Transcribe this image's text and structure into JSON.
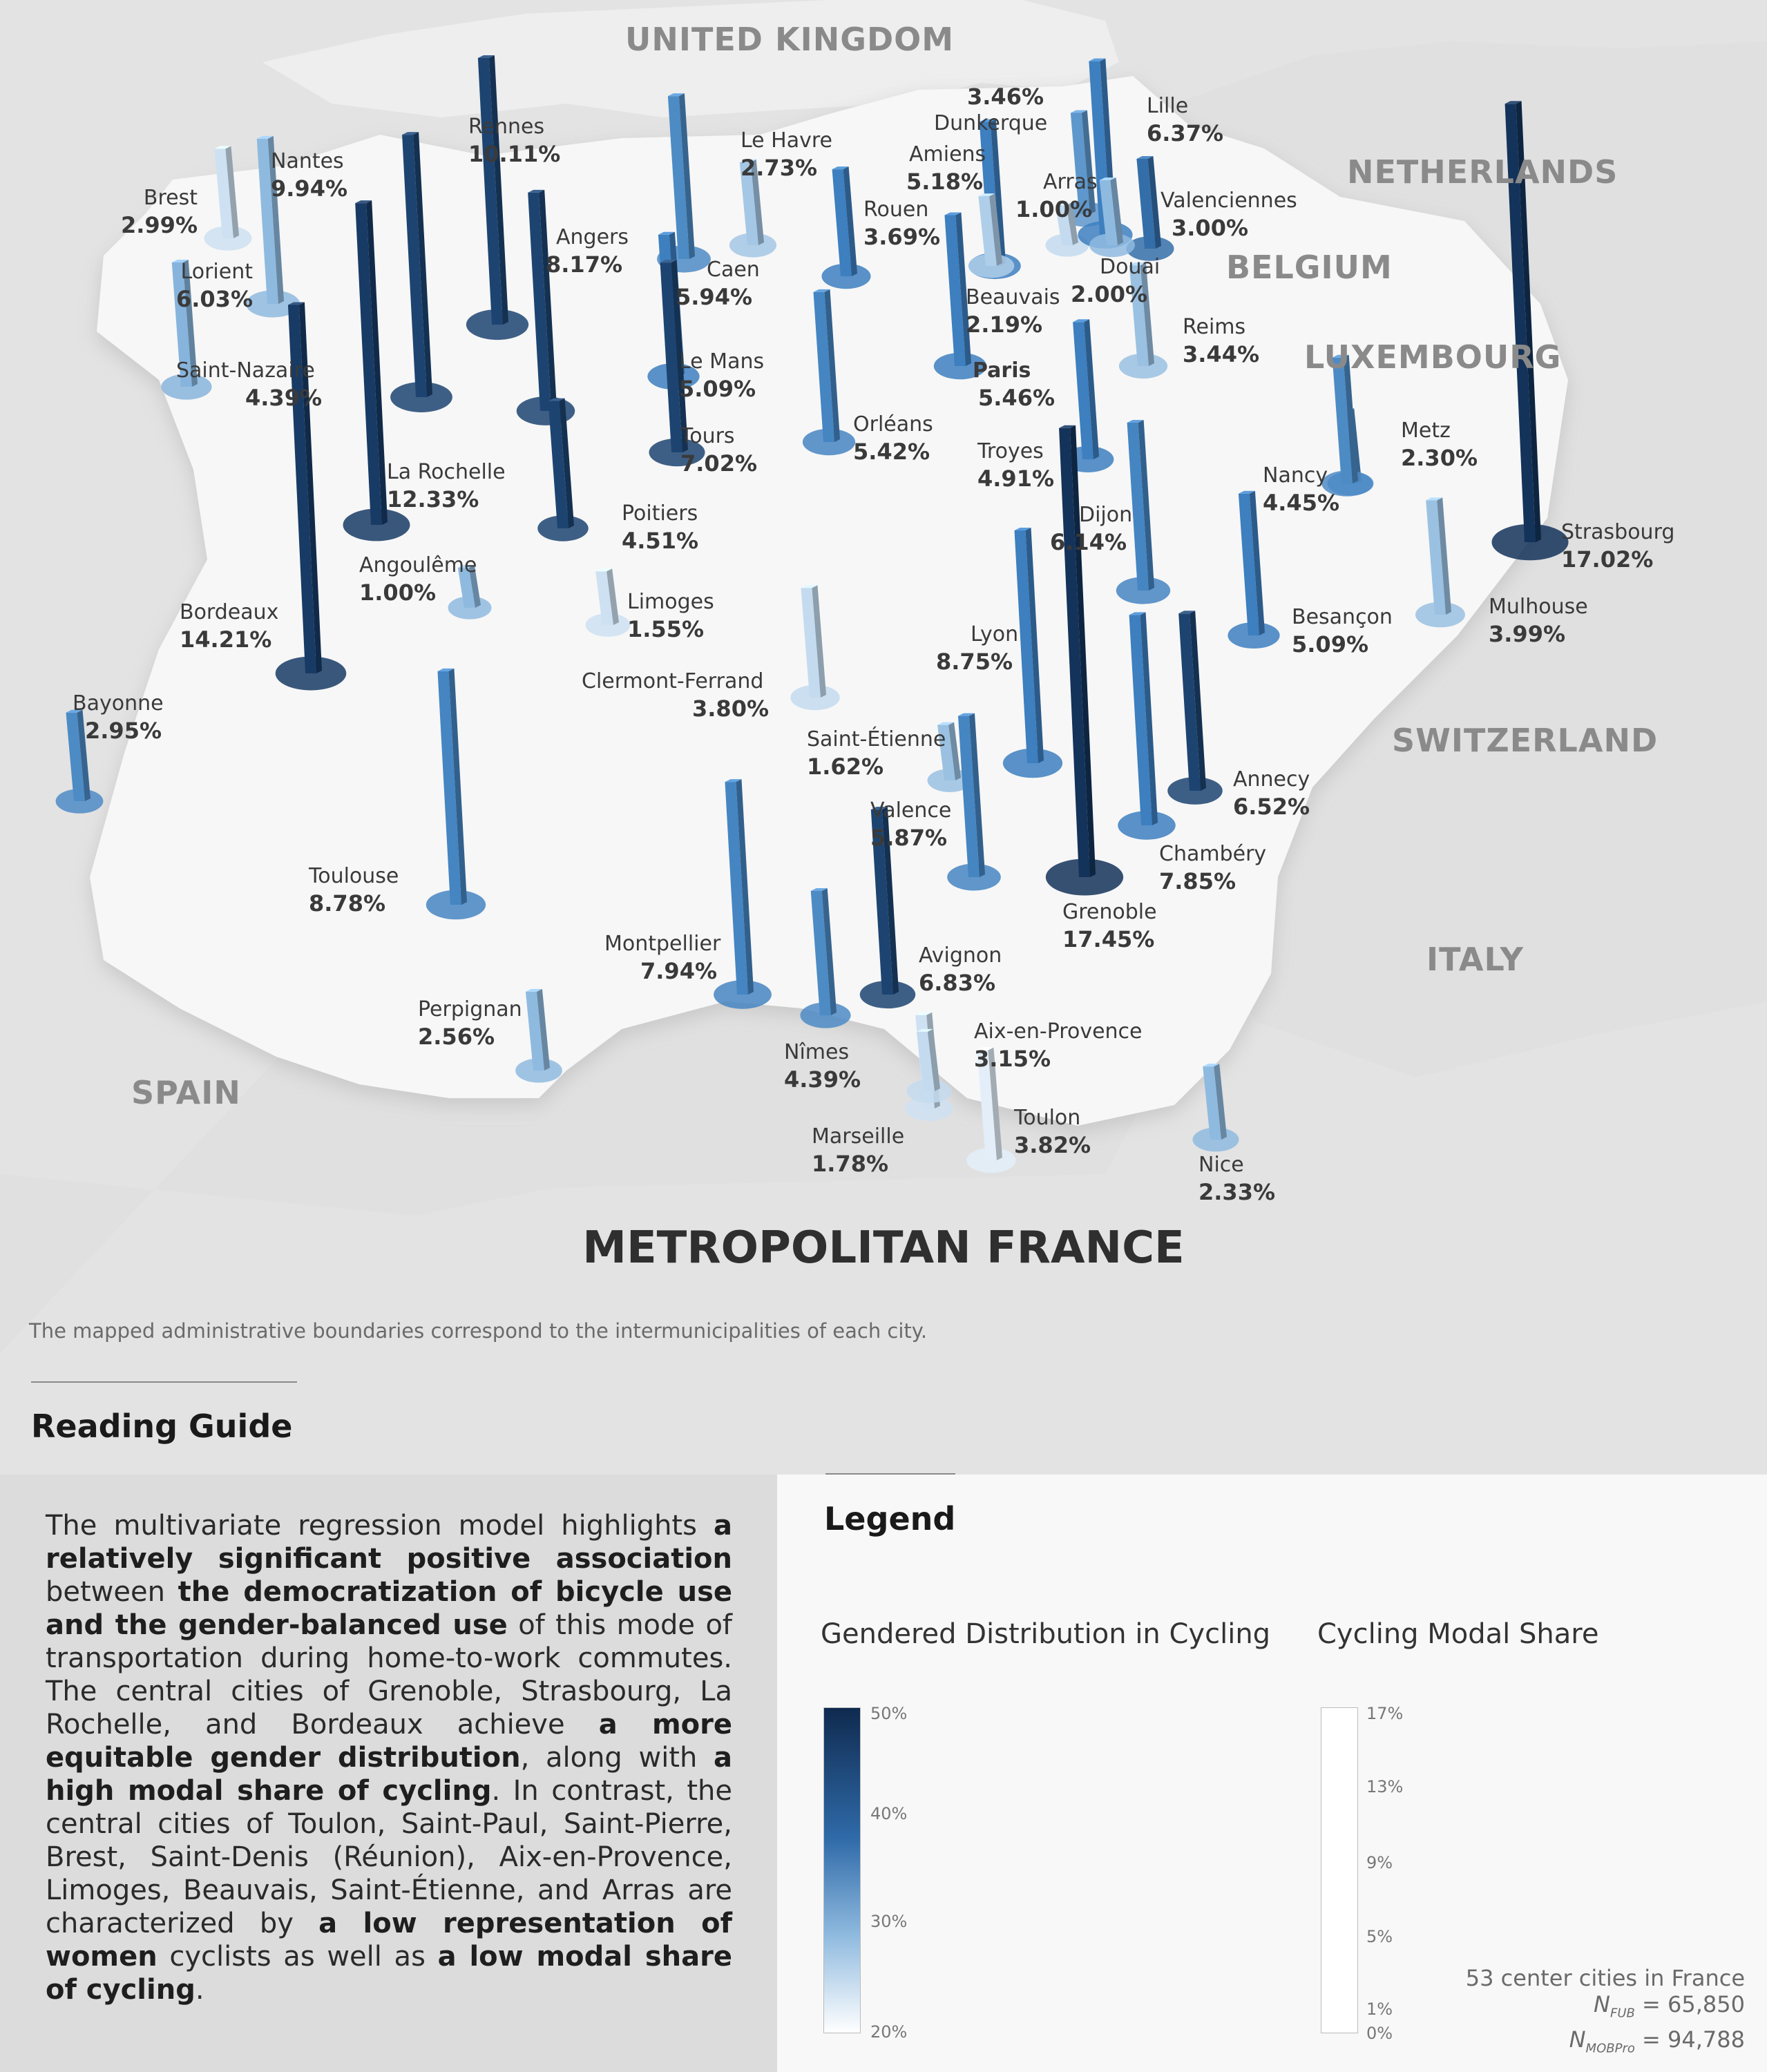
{
  "title": "METROPOLITAN FRANCE",
  "note": "The mapped administrative boundaries correspond to the intermunicipalities of each city.",
  "countries": [
    "UNITED KINGDOM",
    "NETHERLANDS",
    "BELGIUM",
    "LUXEMBOURG",
    "SWITZERLAND",
    "ITALY",
    "SPAIN"
  ],
  "cities": [
    {
      "name": "Brest",
      "value": "2.99%",
      "share": 2.99,
      "gender": 24
    },
    {
      "name": "Nantes",
      "value": "9.94%",
      "share": 9.94,
      "gender": 47
    },
    {
      "name": "Rennes",
      "value": "10.11%",
      "share": 10.11,
      "gender": 47
    },
    {
      "name": "Lorient",
      "value": "6.03%",
      "share": 6.03,
      "gender": 30
    },
    {
      "name": "Saint-Nazaire",
      "value": "4.39%",
      "share": 4.39,
      "gender": 31
    },
    {
      "name": "Angers",
      "value": "8.17%",
      "share": 8.17,
      "gender": 47
    },
    {
      "name": "Caen",
      "value": "5.94%",
      "share": 5.94,
      "gender": 38
    },
    {
      "name": "Le Havre",
      "value": "2.73%",
      "share": 2.73,
      "gender": 28
    },
    {
      "name": "Rouen",
      "value": "3.69%",
      "share": 3.69,
      "gender": 40
    },
    {
      "name": "Amiens",
      "value": "5.18%",
      "share": 5.18,
      "gender": 40
    },
    {
      "name": "Dunkerque",
      "value": "3.46%",
      "share": 3.46,
      "gender": 36
    },
    {
      "name": "Arras",
      "value": "1.00%",
      "share": 1.0,
      "gender": 25
    },
    {
      "name": "Lille",
      "value": "6.37%",
      "share": 6.37,
      "gender": 40
    },
    {
      "name": "Valenciennes",
      "value": "3.00%",
      "share": 3.0,
      "gender": 42
    },
    {
      "name": "Douai",
      "value": "2.00%",
      "share": 2.0,
      "gender": 30
    },
    {
      "name": "Beauvais",
      "value": "2.19%",
      "share": 2.19,
      "gender": 27
    },
    {
      "name": "Paris",
      "value": "5.46%",
      "share": 5.46,
      "gender": 40
    },
    {
      "name": "Reims",
      "value": "3.44%",
      "share": 3.44,
      "gender": 29
    },
    {
      "name": "Le Mans",
      "value": "5.09%",
      "share": 5.09,
      "gender": 40
    },
    {
      "name": "Tours",
      "value": "7.02%",
      "share": 7.02,
      "gender": 47
    },
    {
      "name": "Orléans",
      "value": "5.42%",
      "share": 5.42,
      "gender": 39
    },
    {
      "name": "Troyes",
      "value": "4.91%",
      "share": 4.91,
      "gender": 40
    },
    {
      "name": "Metz",
      "value": "2.30%",
      "share": 2.3,
      "gender": 38
    },
    {
      "name": "Nancy",
      "value": "4.45%",
      "share": 4.45,
      "gender": 38
    },
    {
      "name": "La Rochelle",
      "value": "12.33%",
      "share": 12.33,
      "gender": 48
    },
    {
      "name": "Poitiers",
      "value": "4.51%",
      "share": 4.51,
      "gender": 47
    },
    {
      "name": "Dijon",
      "value": "6.14%",
      "share": 6.14,
      "gender": 39
    },
    {
      "name": "Strasbourg",
      "value": "17.02%",
      "share": 17.02,
      "gender": 49
    },
    {
      "name": "Angoulême",
      "value": "1.00%",
      "share": 1.0,
      "gender": 30
    },
    {
      "name": "Limoges",
      "value": "1.55%",
      "share": 1.55,
      "gender": 24
    },
    {
      "name": "Bordeaux",
      "value": "14.21%",
      "share": 14.21,
      "gender": 48
    },
    {
      "name": "Mulhouse",
      "value": "3.99%",
      "share": 3.99,
      "gender": 29
    },
    {
      "name": "Besançon",
      "value": "5.09%",
      "share": 5.09,
      "gender": 40
    },
    {
      "name": "Lyon",
      "value": "8.75%",
      "share": 8.75,
      "gender": 40
    },
    {
      "name": "Clermont-Ferrand",
      "value": "3.80%",
      "share": 3.8,
      "gender": 25
    },
    {
      "name": "Bayonne",
      "value": "2.95%",
      "share": 2.95,
      "gender": 38
    },
    {
      "name": "Saint-Étienne",
      "value": "1.62%",
      "share": 1.62,
      "gender": 29
    },
    {
      "name": "Annecy",
      "value": "6.52%",
      "share": 6.52,
      "gender": 47
    },
    {
      "name": "Valence",
      "value": "5.87%",
      "share": 5.87,
      "gender": 39
    },
    {
      "name": "Chambéry",
      "value": "7.85%",
      "share": 7.85,
      "gender": 40
    },
    {
      "name": "Toulouse",
      "value": "8.78%",
      "share": 8.78,
      "gender": 39
    },
    {
      "name": "Grenoble",
      "value": "17.45%",
      "share": 17.45,
      "gender": 49
    },
    {
      "name": "Montpellier",
      "value": "7.94%",
      "share": 7.94,
      "gender": 39
    },
    {
      "name": "Avignon",
      "value": "6.83%",
      "share": 6.83,
      "gender": 47
    },
    {
      "name": "Perpignan",
      "value": "2.56%",
      "share": 2.56,
      "gender": 30
    },
    {
      "name": "Aix-en-Provence",
      "value": "3.15%",
      "share": 3.15,
      "gender": 24
    },
    {
      "name": "Nîmes",
      "value": "4.39%",
      "share": 4.39,
      "gender": 38
    },
    {
      "name": "Toulon",
      "value": "3.82%",
      "share": 3.82,
      "gender": 22
    },
    {
      "name": "Marseille",
      "value": "1.78%",
      "share": 1.78,
      "gender": 25
    },
    {
      "name": "Nice",
      "value": "2.33%",
      "share": 2.33,
      "gender": 30
    }
  ],
  "guide": {
    "title": "Reading Guide",
    "parts": [
      {
        "t": "The multivariate regression model highlights ",
        "b": false
      },
      {
        "t": "a relatively significant positive association",
        "b": true
      },
      {
        "t": " between ",
        "b": false
      },
      {
        "t": "the democratization of bicycle use and the gender-balanced use",
        "b": true
      },
      {
        "t": " of this mode of transportation during home-to-work commutes. The central cities of Grenoble, Strasbourg, La Rochelle, and Bordeaux achieve ",
        "b": false
      },
      {
        "t": "a more equitable gender distribution",
        "b": true
      },
      {
        "t": ", along with ",
        "b": false
      },
      {
        "t": "a high modal share of cycling",
        "b": true
      },
      {
        "t": ". In contrast, the central cities of Toulon, Saint-Paul, Saint-Pierre, Brest, Saint-Denis (Réunion), Aix-en-Provence, Limoges, Beauvais, Saint-Étienne, and Arras are characterized by ",
        "b": false
      },
      {
        "t": "a low representation of women",
        "b": true
      },
      {
        "t": " cyclists as well as ",
        "b": false
      },
      {
        "t": "a low modal share of cycling",
        "b": true
      },
      {
        "t": ".",
        "b": false
      }
    ]
  },
  "legend": {
    "title": "Legend",
    "gender_title": "Gendered Distribution in Cycling",
    "gender_ticks": [
      "50%",
      "40%",
      "30%",
      "20%"
    ],
    "share_title": "Cycling Modal Share",
    "share_ticks": [
      "17%",
      "13%",
      "9%",
      "5%",
      "1%",
      "0%"
    ]
  },
  "stats": {
    "line1": "53 center cities in France",
    "n1_sub": "FUB",
    "n1_val": "= 65,850",
    "n2_sub": "MOBPro",
    "n2_val": "= 94,788"
  },
  "colors": {
    "dark": "#0f2a4f",
    "mid": "#3d7fbf",
    "light": "#c9dded",
    "france": "#f7f7f7",
    "neighbor": "#e3e3e3"
  }
}
